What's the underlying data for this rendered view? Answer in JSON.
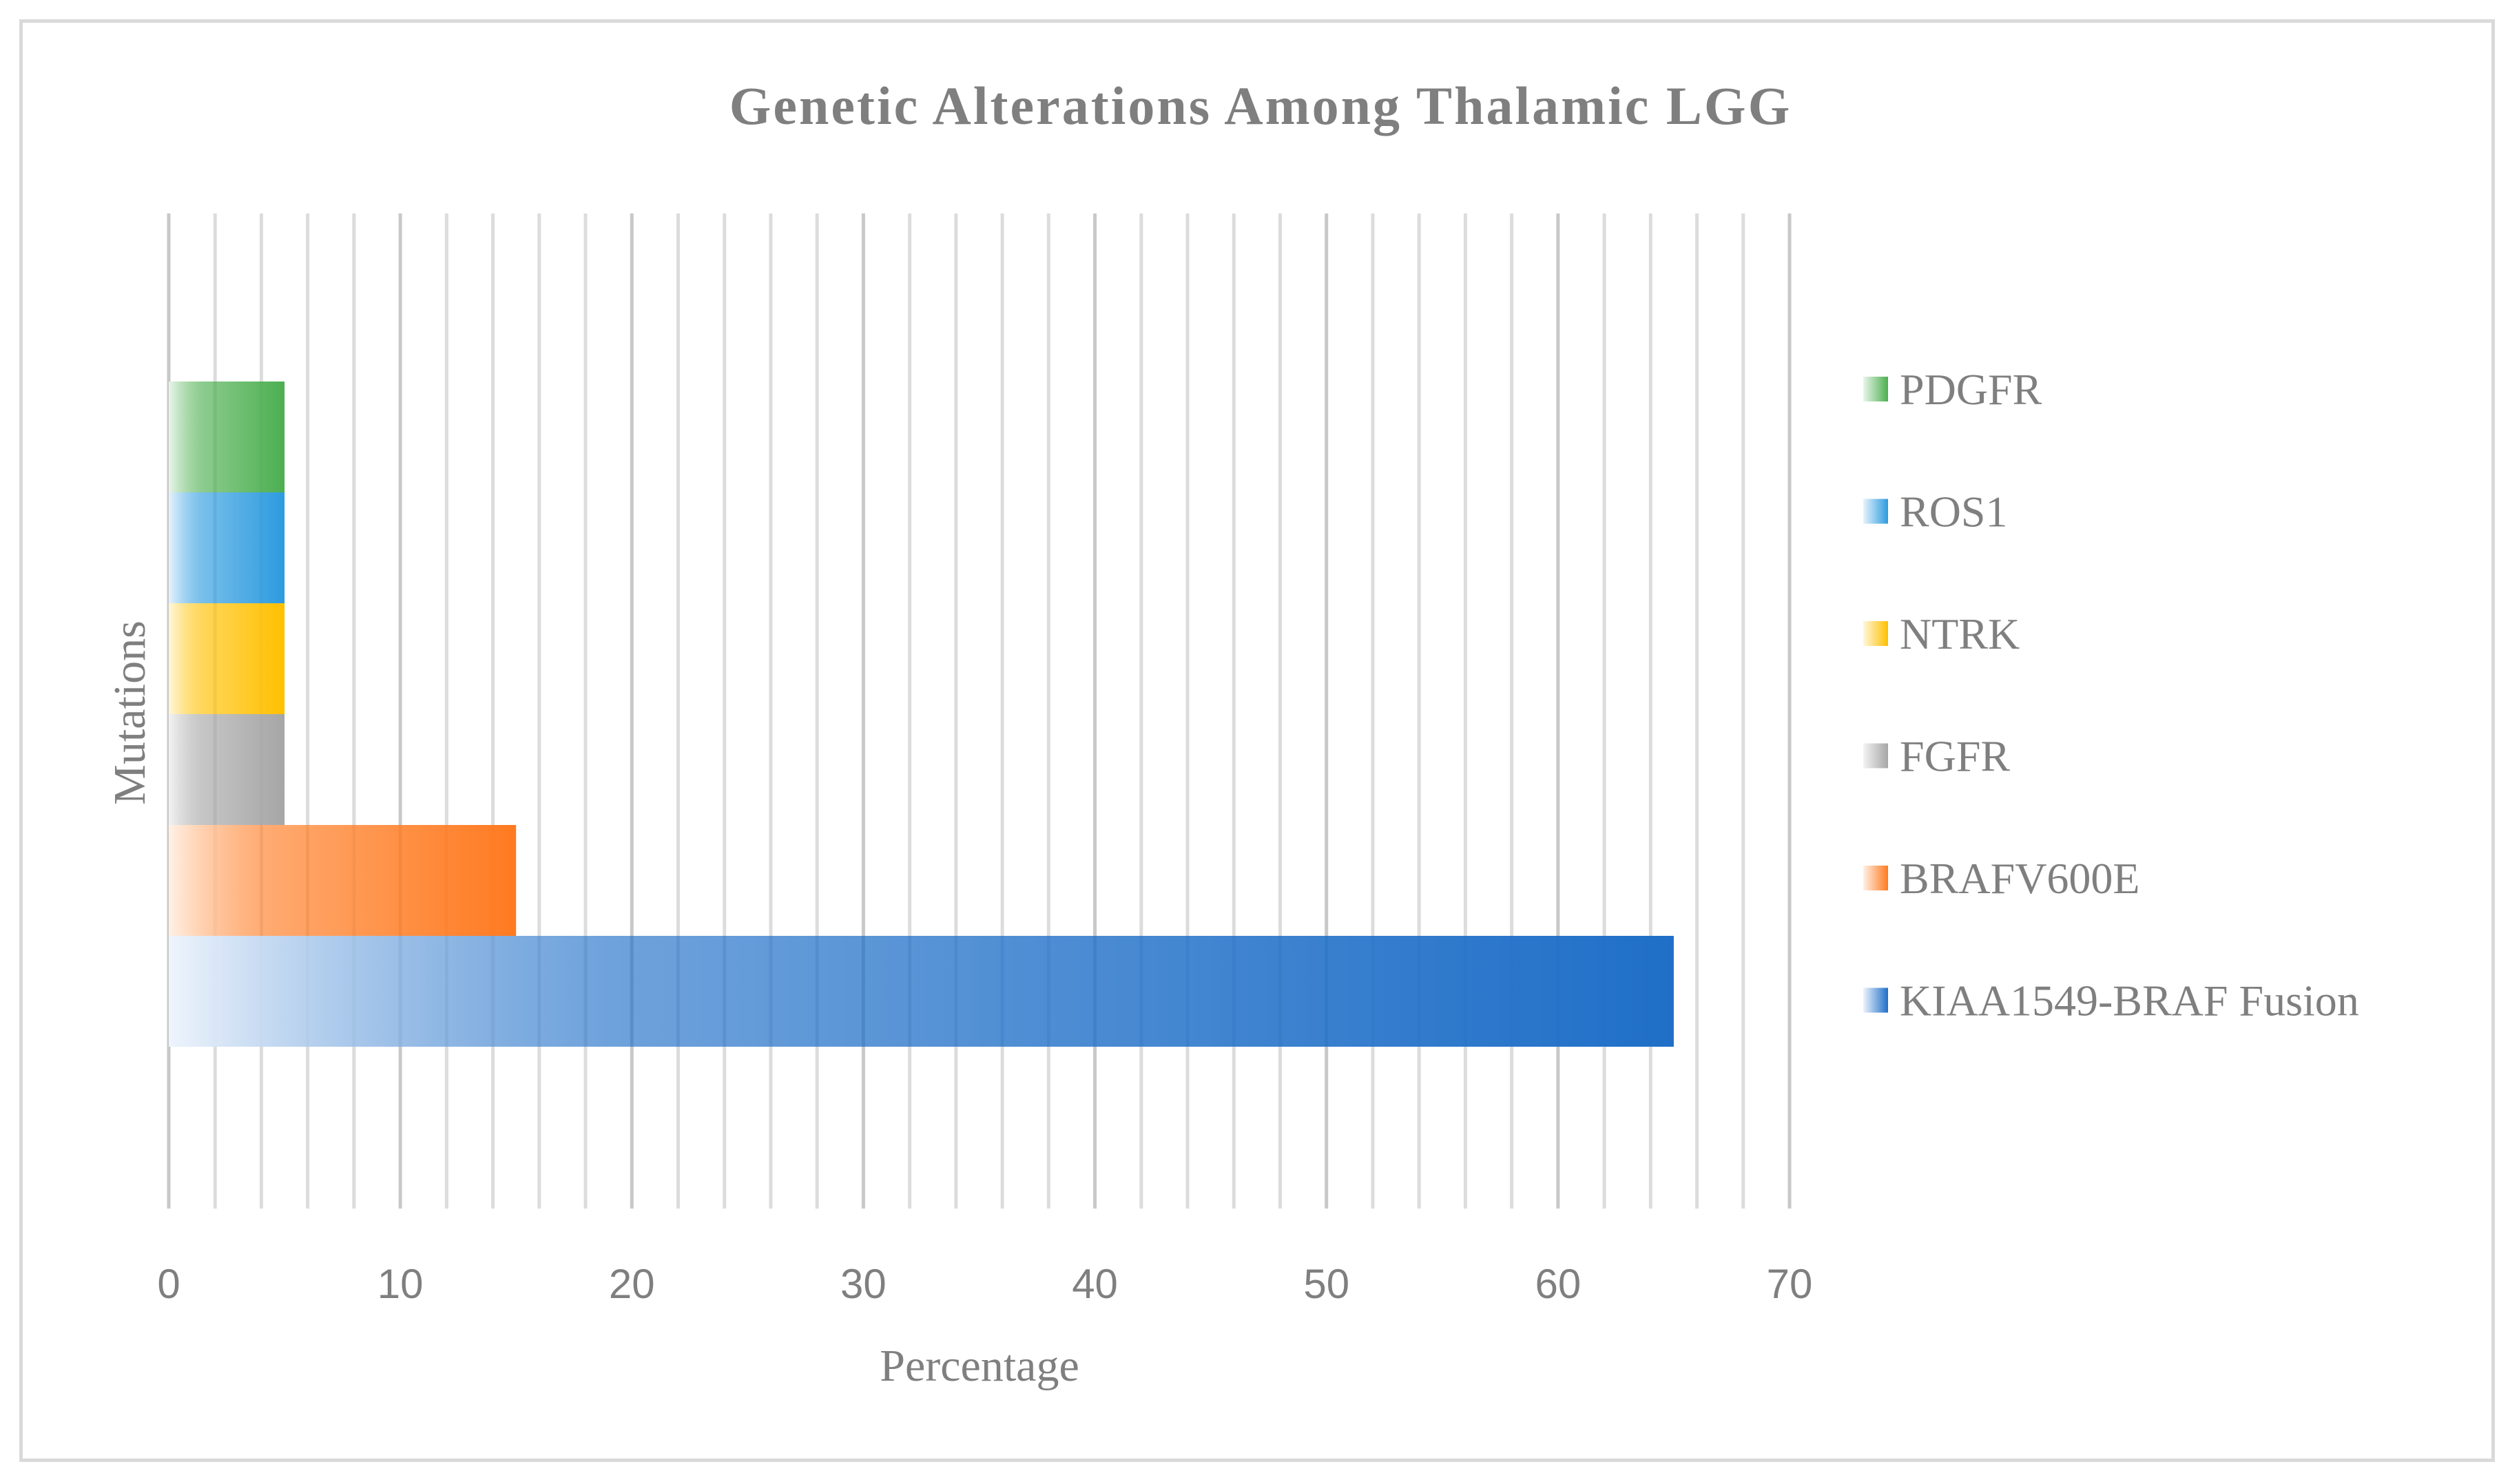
{
  "chart_data": {
    "type": "bar",
    "orientation": "horizontal",
    "title": "Genetic Alterations Among Thalamic LGG",
    "xlabel": "Percentage",
    "ylabel": "Mutations",
    "xlim": [
      0,
      70
    ],
    "x_ticks": [
      "0",
      "10",
      "20",
      "30",
      "40",
      "50",
      "60",
      "70"
    ],
    "x_minor_step": 2,
    "grid": true,
    "legend_position": "right",
    "series": [
      {
        "name": "KIAA1549-BRAF Fusion",
        "value": 65,
        "color": "#1f6fc8",
        "color_light": "#eef4fc"
      },
      {
        "name": "BRAFV600E",
        "value": 15,
        "color": "#ff7a20",
        "color_light": "#fff1e6"
      },
      {
        "name": "FGFR",
        "value": 5,
        "color": "#a6a6a6",
        "color_light": "#f3f3f3"
      },
      {
        "name": "NTRK",
        "value": 5,
        "color": "#ffc000",
        "color_light": "#fff7dc"
      },
      {
        "name": "ROS1",
        "value": 5,
        "color": "#2c9bdf",
        "color_light": "#e6f3fc"
      },
      {
        "name": "PDGFR",
        "value": 5,
        "color": "#4caf50",
        "color_light": "#e9f6ea"
      }
    ],
    "legend_order": [
      "PDGFR",
      "ROS1",
      "NTRK",
      "FGFR",
      "BRAFV600E",
      "KIAA1549-BRAF Fusion"
    ]
  }
}
